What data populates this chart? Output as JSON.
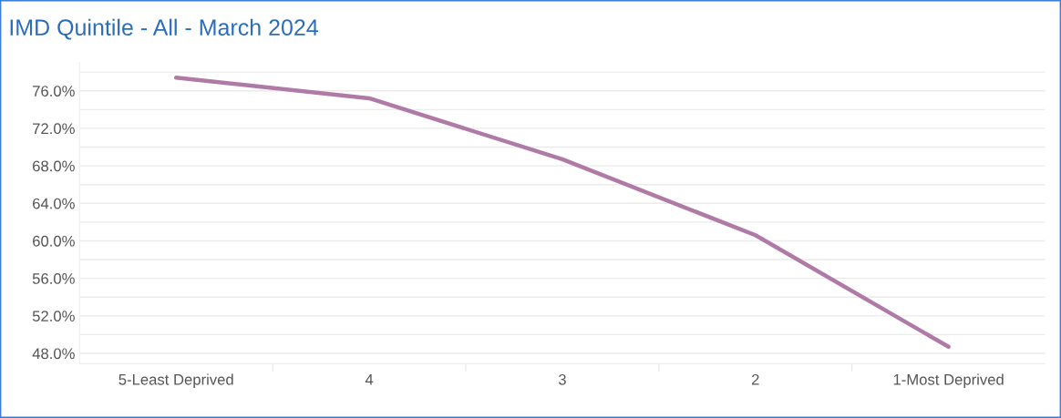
{
  "chart_data": {
    "type": "line",
    "title": "IMD Quintile - All - March 2024",
    "categories": [
      "5-Least Deprived",
      "4",
      "3",
      "2",
      "1-Most Deprived"
    ],
    "series": [
      {
        "color": "#b07aa6",
        "values": [
          77.4,
          75.2,
          68.7,
          60.6,
          48.7
        ]
      }
    ],
    "ylim": [
      46.9,
      79
    ],
    "yticks": [
      {
        "value": 48,
        "label": "48.0%"
      },
      {
        "value": 50,
        "label": null
      },
      {
        "value": 52,
        "label": "52.0%"
      },
      {
        "value": 54,
        "label": null
      },
      {
        "value": 56,
        "label": "56.0%"
      },
      {
        "value": 58,
        "label": null
      },
      {
        "value": 60,
        "label": "60.0%"
      },
      {
        "value": 62,
        "label": null
      },
      {
        "value": 64,
        "label": "64.0%"
      },
      {
        "value": 66,
        "label": null
      },
      {
        "value": 68,
        "label": "68.0%"
      },
      {
        "value": 70,
        "label": null
      },
      {
        "value": 72,
        "label": "72.0%"
      },
      {
        "value": 74,
        "label": null
      },
      {
        "value": 76,
        "label": "76.0%"
      },
      {
        "value": 78,
        "label": null
      }
    ],
    "grid": "y",
    "marker": "none",
    "line_style": "solid"
  }
}
